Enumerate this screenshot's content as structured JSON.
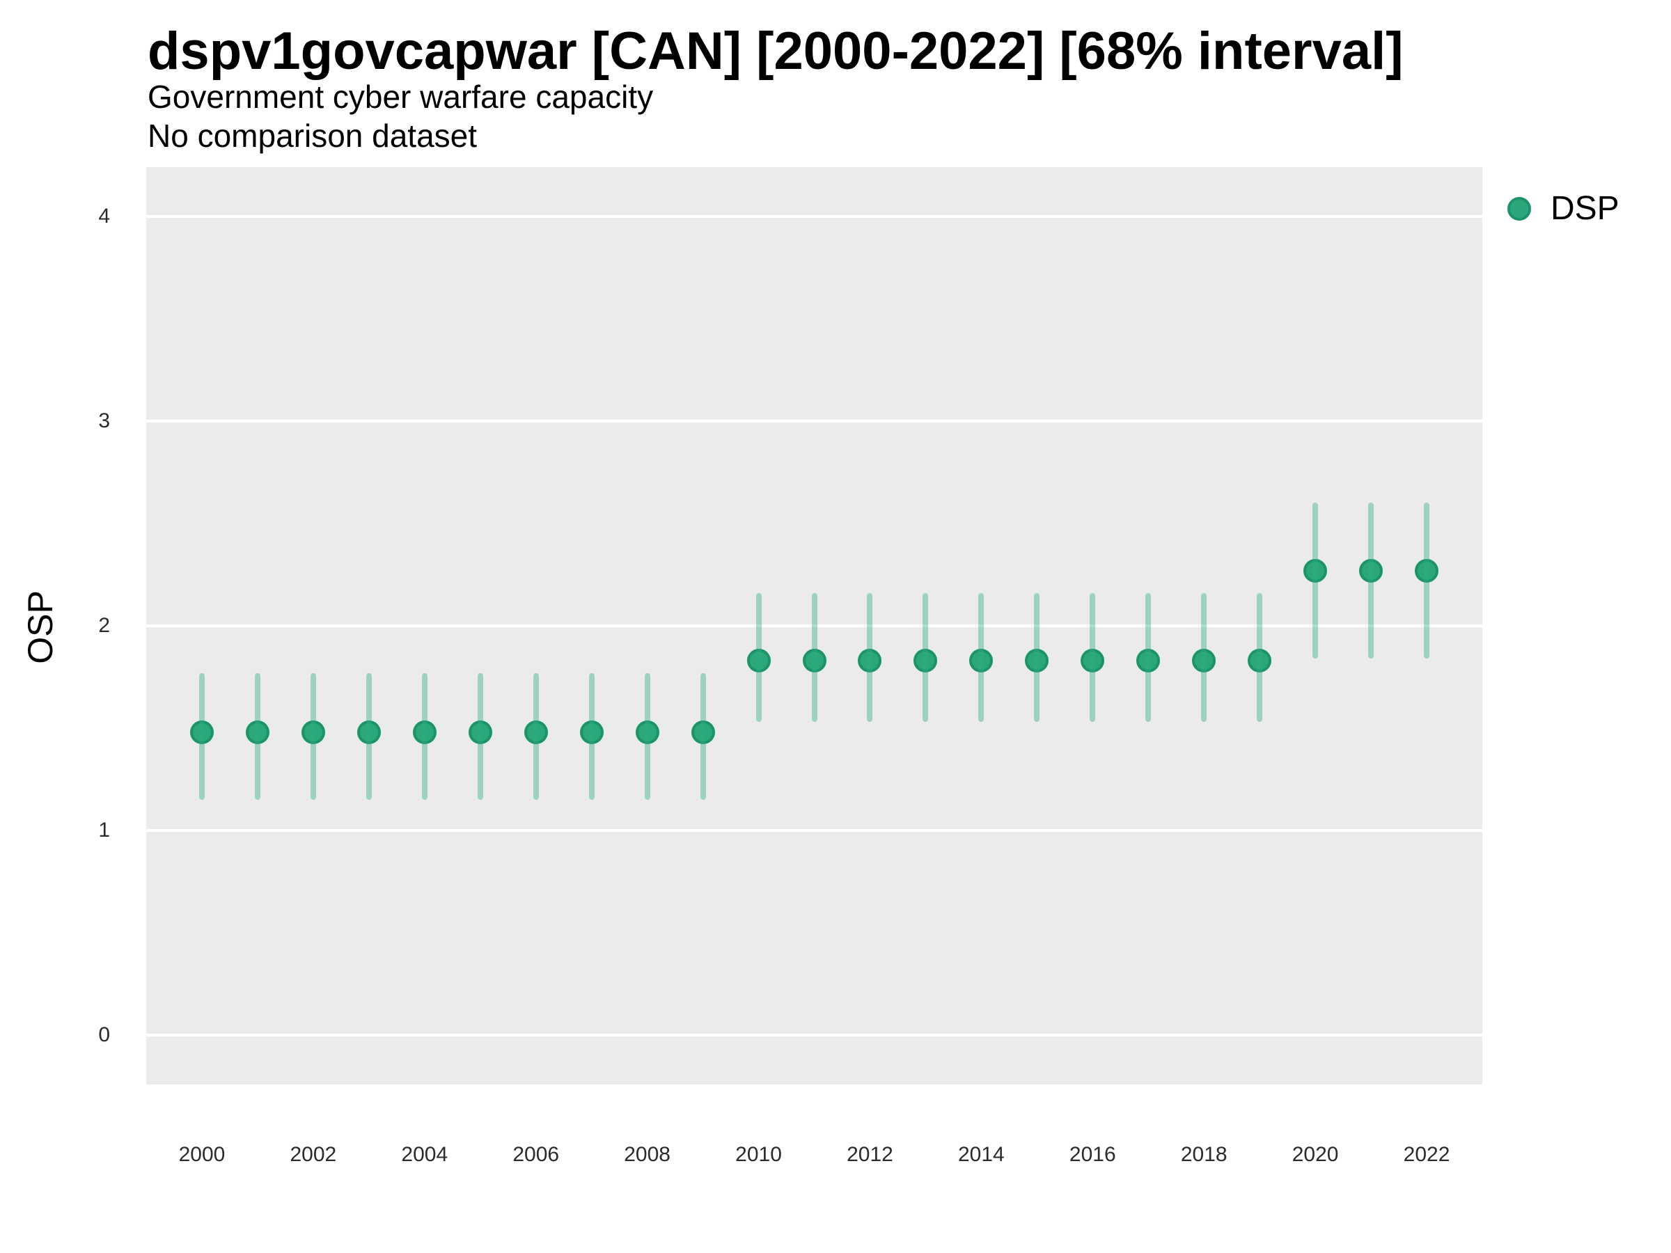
{
  "header": {
    "title": "dspv1govcapwar [CAN] [2000-2022] [68% interval]",
    "subtitle": "Government cyber warfare capacity",
    "note": "No comparison dataset"
  },
  "axes": {
    "y_title": "OSP",
    "x_title": ""
  },
  "legend": {
    "items": [
      {
        "label": "DSP",
        "color": "#2aa87c"
      }
    ]
  },
  "colors": {
    "point_fill": "#2aa87c",
    "point_stroke": "#1d9468",
    "interval_bar": "rgba(43,173,128,0.4)",
    "panel_background": "#EBEBEB",
    "gridline": "#ffffff",
    "tick_text": "#2b2b2b"
  },
  "chart_data": {
    "type": "pointrange",
    "title": "dspv1govcapwar [CAN] [2000-2022] [68% interval]",
    "xlabel": "",
    "ylabel": "OSP",
    "legend_position": "right",
    "grid": "horizontal-major-only",
    "xlim": [
      1999,
      2023
    ],
    "ylim": [
      -0.24,
      4.24
    ],
    "x_ticks": [
      2000,
      2002,
      2004,
      2006,
      2008,
      2010,
      2012,
      2014,
      2016,
      2018,
      2020,
      2022
    ],
    "y_ticks": [
      0,
      1,
      2,
      3,
      4
    ],
    "series": [
      {
        "name": "DSP",
        "points": [
          {
            "year": 2000,
            "value": 1.48,
            "low": 1.15,
            "high": 1.77
          },
          {
            "year": 2001,
            "value": 1.48,
            "low": 1.15,
            "high": 1.77
          },
          {
            "year": 2002,
            "value": 1.48,
            "low": 1.15,
            "high": 1.77
          },
          {
            "year": 2003,
            "value": 1.48,
            "low": 1.15,
            "high": 1.77
          },
          {
            "year": 2004,
            "value": 1.48,
            "low": 1.15,
            "high": 1.77
          },
          {
            "year": 2005,
            "value": 1.48,
            "low": 1.15,
            "high": 1.77
          },
          {
            "year": 2006,
            "value": 1.48,
            "low": 1.15,
            "high": 1.77
          },
          {
            "year": 2007,
            "value": 1.48,
            "low": 1.15,
            "high": 1.77
          },
          {
            "year": 2008,
            "value": 1.48,
            "low": 1.15,
            "high": 1.77
          },
          {
            "year": 2009,
            "value": 1.48,
            "low": 1.15,
            "high": 1.77
          },
          {
            "year": 2010,
            "value": 1.83,
            "low": 1.53,
            "high": 2.16
          },
          {
            "year": 2011,
            "value": 1.83,
            "low": 1.53,
            "high": 2.16
          },
          {
            "year": 2012,
            "value": 1.83,
            "low": 1.53,
            "high": 2.16
          },
          {
            "year": 2013,
            "value": 1.83,
            "low": 1.53,
            "high": 2.16
          },
          {
            "year": 2014,
            "value": 1.83,
            "low": 1.53,
            "high": 2.16
          },
          {
            "year": 2015,
            "value": 1.83,
            "low": 1.53,
            "high": 2.16
          },
          {
            "year": 2016,
            "value": 1.83,
            "low": 1.53,
            "high": 2.16
          },
          {
            "year": 2017,
            "value": 1.83,
            "low": 1.53,
            "high": 2.16
          },
          {
            "year": 2018,
            "value": 1.83,
            "low": 1.53,
            "high": 2.16
          },
          {
            "year": 2019,
            "value": 1.83,
            "low": 1.53,
            "high": 2.16
          },
          {
            "year": 2020,
            "value": 2.27,
            "low": 1.84,
            "high": 2.6
          },
          {
            "year": 2021,
            "value": 2.27,
            "low": 1.84,
            "high": 2.6
          },
          {
            "year": 2022,
            "value": 2.27,
            "low": 1.84,
            "high": 2.6
          }
        ]
      }
    ]
  }
}
